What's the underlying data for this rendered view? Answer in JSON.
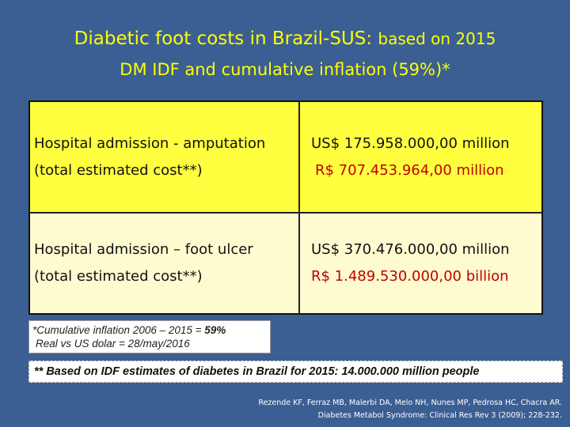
{
  "title": {
    "line1_main": "Diabetic foot costs in Brazil-SUS:",
    "line1_small": "based on 2015",
    "line2": "DM IDF and cumulative inflation (59%)*"
  },
  "table": {
    "rows": [
      {
        "label": "Hospital admission - amputation",
        "sublabel": "(total estimated cost**)",
        "usd": "US$ 175.958.000,00 million",
        "brl": "R$ 707.453.964,00 million"
      },
      {
        "label": "Hospital admission – foot ulcer",
        "sublabel": "(total estimated cost**)",
        "usd": "US$ 370.476.000,00 million",
        "brl": "R$ 1.489.530.000,00 billion"
      }
    ]
  },
  "notes": {
    "inflation_prefix": "*Cumulative inflation 2006 – 2015 = ",
    "inflation_value": "59%",
    "exchange": "Real vs US dolar = 28/may/2016",
    "idf": "** Based on IDF estimates of diabetes in Brazil for 2015: 14.000.000 million people"
  },
  "reference": {
    "line1": "Rezende KF, Ferraz MB, Malerbi DA, Melo NH, Nunes MP, Pedrosa HC, Chacra AR.",
    "line2": "Diabetes Metabol Syndrome: Clinical Res Rev 3 (2009); 228-232."
  },
  "colors": {
    "background": "#3b5f93",
    "title": "#ffff00",
    "row1": "#ffff3f",
    "row2": "#fffbd0",
    "brl_row1": "#c00000"
  }
}
